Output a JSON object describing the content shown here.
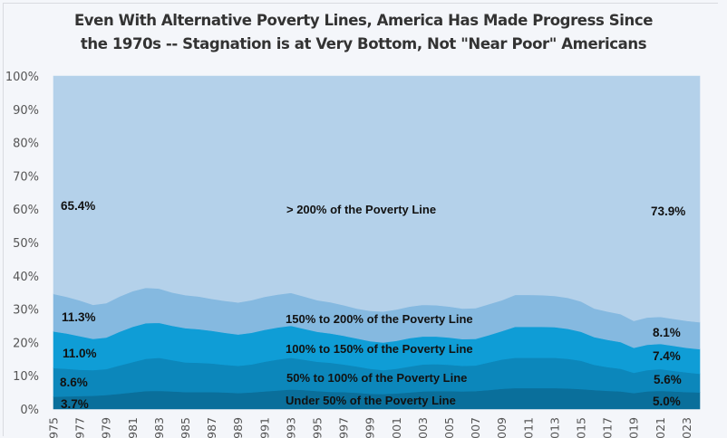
{
  "chart_data": {
    "type": "area",
    "stacked": true,
    "normalized": true,
    "title": "Even With Alternative Poverty Lines, America Has Made Progress Since the 1970s -- Stagnation is at Very Bottom, Not \"Near Poor\" Americans",
    "title_lines": [
      "Even With Alternative Poverty Lines, America Has Made Progress Since",
      "the 1970s -- Stagnation is at Very Bottom, Not \"Near Poor\" Americans"
    ],
    "xlabel": "",
    "ylabel": "",
    "ylim": [
      0,
      100
    ],
    "yticks": [
      "0%",
      "10%",
      "20%",
      "30%",
      "40%",
      "50%",
      "60%",
      "70%",
      "80%",
      "90%",
      "100%"
    ],
    "x": [
      1975,
      1976,
      1977,
      1978,
      1979,
      1980,
      1981,
      1982,
      1983,
      1984,
      1985,
      1986,
      1987,
      1988,
      1989,
      1990,
      1991,
      1992,
      1993,
      1994,
      1995,
      1996,
      1997,
      1998,
      1999,
      2000,
      2001,
      2002,
      2003,
      2004,
      2005,
      2006,
      2007,
      2008,
      2009,
      2010,
      2011,
      2012,
      2013,
      2014,
      2015,
      2016,
      2017,
      2018,
      2019,
      2020,
      2021,
      2022,
      2023,
      2024
    ],
    "xtick_labels": [
      "1975",
      "1977",
      "1979",
      "1981",
      "1983",
      "1985",
      "1987",
      "1989",
      "1991",
      "1993",
      "1995",
      "1997",
      "1999",
      "2001",
      "2003",
      "2005",
      "2007",
      "2009",
      "2011",
      "2013",
      "2015",
      "2017",
      "2019",
      "2021",
      "2023"
    ],
    "series": [
      {
        "name": "Under 50% of the Poverty Line",
        "color": "#0a6f9b",
        "values": [
          3.7,
          3.8,
          3.9,
          4.0,
          4.2,
          4.6,
          5.0,
          5.4,
          5.5,
          5.3,
          5.1,
          5.1,
          5.1,
          5.0,
          4.8,
          5.0,
          5.3,
          5.6,
          5.9,
          5.7,
          5.4,
          5.2,
          5.1,
          4.9,
          4.6,
          4.5,
          4.7,
          5.0,
          5.3,
          5.4,
          5.4,
          5.3,
          5.4,
          5.7,
          6.1,
          6.3,
          6.3,
          6.3,
          6.3,
          6.2,
          6.0,
          5.7,
          5.5,
          5.3,
          4.8,
          5.3,
          5.5,
          5.3,
          5.1,
          5.0
        ]
      },
      {
        "name": "50% to 100% of the Poverty Line",
        "color": "#0c87bb",
        "values": [
          8.6,
          8.3,
          7.9,
          7.7,
          7.8,
          8.5,
          9.1,
          9.7,
          9.9,
          9.4,
          8.9,
          8.8,
          8.6,
          8.3,
          8.2,
          8.4,
          8.9,
          9.3,
          9.5,
          9.1,
          8.8,
          8.7,
          8.3,
          7.9,
          7.5,
          7.2,
          7.4,
          7.8,
          8.1,
          8.1,
          7.9,
          7.7,
          7.7,
          8.3,
          8.8,
          9.1,
          9.1,
          9.1,
          9.1,
          8.9,
          8.5,
          7.6,
          7.1,
          6.8,
          6.1,
          6.4,
          6.5,
          6.2,
          5.9,
          5.6
        ]
      },
      {
        "name": "100% to 150% of the Poverty Line",
        "color": "#0f9dd6",
        "values": [
          11.0,
          10.6,
          10.1,
          9.4,
          9.5,
          10.1,
          10.6,
          10.7,
          10.5,
          10.3,
          10.3,
          10.1,
          9.8,
          9.6,
          9.4,
          9.5,
          9.6,
          9.6,
          9.6,
          9.3,
          9.0,
          8.8,
          8.6,
          8.4,
          8.3,
          8.3,
          8.4,
          8.5,
          8.4,
          8.3,
          8.2,
          8.0,
          8.0,
          8.2,
          8.5,
          9.3,
          9.3,
          9.3,
          9.2,
          9.0,
          8.7,
          8.3,
          8.2,
          8.0,
          7.5,
          7.6,
          7.6,
          7.5,
          7.4,
          7.4
        ]
      },
      {
        "name": "150% to 200% of the Poverty Line",
        "color": "#85b9e0",
        "values": [
          11.3,
          11.0,
          10.7,
          10.2,
          10.3,
          10.6,
          10.7,
          10.6,
          10.3,
          10.0,
          9.9,
          9.8,
          9.6,
          9.6,
          9.6,
          9.8,
          9.9,
          9.9,
          9.9,
          9.7,
          9.5,
          9.4,
          9.2,
          9.0,
          9.1,
          9.3,
          9.4,
          9.5,
          9.5,
          9.4,
          9.3,
          9.2,
          9.2,
          9.3,
          9.3,
          9.6,
          9.6,
          9.5,
          9.4,
          9.3,
          9.1,
          8.6,
          8.5,
          8.4,
          8.1,
          8.2,
          8.1,
          8.1,
          8.1,
          8.1
        ]
      },
      {
        "name": "> 200% of the Poverty Line",
        "color": "#b4d1ea",
        "values": [
          65.4,
          66.3,
          67.4,
          68.7,
          68.2,
          66.2,
          64.6,
          63.6,
          63.8,
          65.0,
          65.8,
          66.2,
          66.9,
          67.5,
          68.0,
          67.3,
          66.3,
          65.6,
          65.1,
          66.2,
          67.3,
          67.9,
          68.8,
          69.8,
          70.5,
          70.7,
          70.1,
          69.2,
          68.7,
          68.8,
          69.2,
          69.8,
          69.7,
          68.5,
          67.3,
          65.7,
          65.7,
          65.8,
          66.0,
          66.6,
          67.7,
          69.8,
          70.7,
          71.5,
          73.5,
          72.5,
          72.3,
          72.9,
          73.5,
          73.9
        ]
      }
    ],
    "annotations": {
      "series_labels": [
        "Under 50% of the Poverty Line",
        "50% to 100% of the Poverty Line",
        "100% to 150% of the Poverty Line",
        "150% to 200% of the Poverty Line",
        "> 200% of the Poverty Line"
      ],
      "start_values": [
        "3.7%",
        "8.6%",
        "11.0%",
        "11.3%",
        "65.4%"
      ],
      "end_values": [
        "5.0%",
        "5.6%",
        "7.4%",
        "8.1%",
        "73.9%"
      ]
    },
    "grid": false,
    "legend": "none (inline labels)"
  },
  "background": "#f4f6fa"
}
